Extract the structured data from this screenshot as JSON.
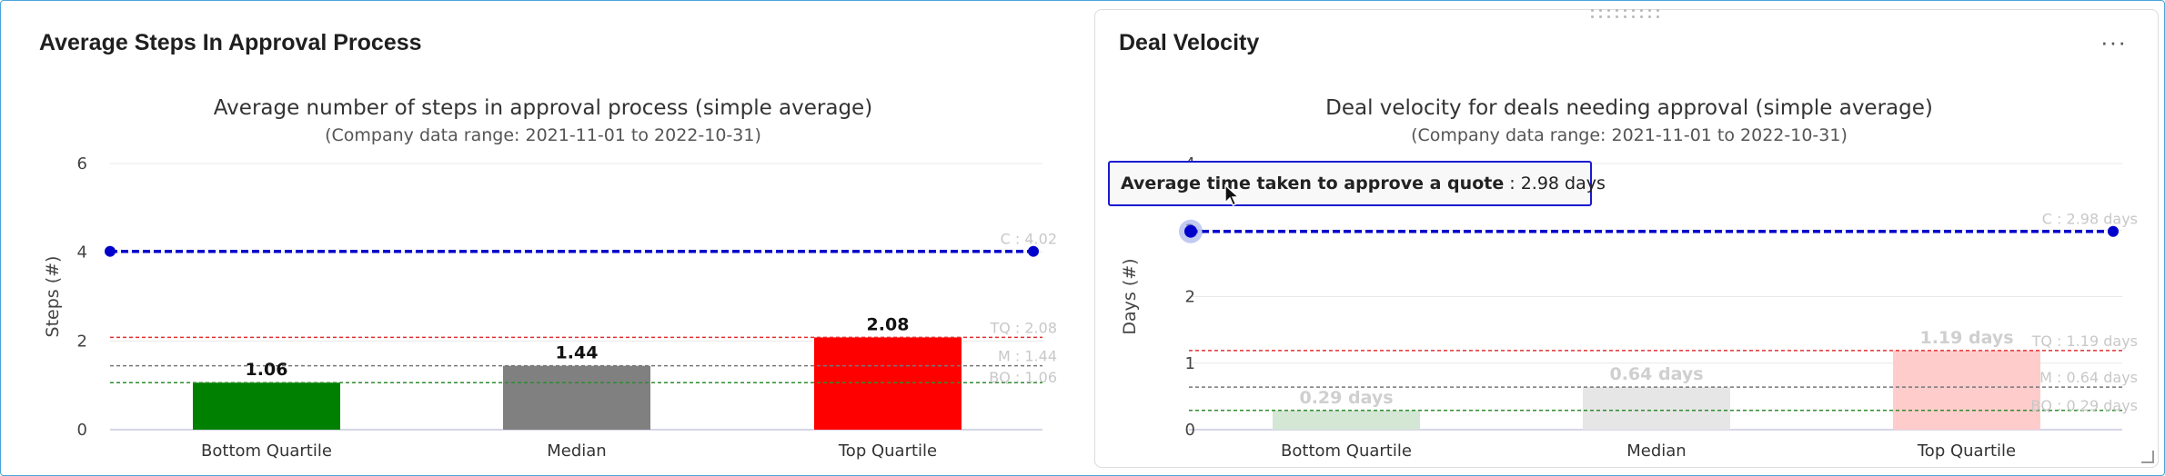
{
  "panels": {
    "left": {
      "title": "Average Steps In Approval Process"
    },
    "right": {
      "title": "Deal Velocity",
      "menu_icon": "more-horizontal-icon"
    }
  },
  "tooltip": {
    "label": "Average time taken to approve a quote",
    "value": " : 2.98 days"
  },
  "chart_data": [
    {
      "type": "bar",
      "title": "Average number of steps in approval process (simple average)",
      "subtitle": "(Company data range: 2021-11-01 to 2022-10-31)",
      "xlabel": "",
      "ylabel": "Steps (#)",
      "ylim": [
        0,
        6
      ],
      "yticks": [
        0,
        2,
        4,
        6
      ],
      "grid": true,
      "categories": [
        "Bottom Quartile",
        "Median",
        "Top Quartile"
      ],
      "values": [
        1.06,
        1.44,
        2.08
      ],
      "value_labels": [
        "1.06",
        "1.44",
        "2.08"
      ],
      "bar_colors": [
        "#008000",
        "#808080",
        "#ff0000"
      ],
      "bars_faded": false,
      "company_line": {
        "value": 4.02,
        "label": "C : 4.02",
        "color": "#0000cc"
      },
      "reference_lines": [
        {
          "value": 2.08,
          "label": "TQ : 2.08",
          "color": "#e03030"
        },
        {
          "value": 1.44,
          "label": "M : 1.44",
          "color": "#777777"
        },
        {
          "value": 1.06,
          "label": "BQ : 1.06",
          "color": "#2e8b2e"
        }
      ]
    },
    {
      "type": "bar",
      "title": "Deal velocity for deals needing approval (simple average)",
      "subtitle": "(Company data range: 2021-11-01 to 2022-10-31)",
      "xlabel": "",
      "ylabel": "Days (#)",
      "ylim": [
        0,
        4
      ],
      "yticks": [
        0,
        1,
        2,
        3,
        4
      ],
      "grid": true,
      "categories": [
        "Bottom Quartile",
        "Median",
        "Top Quartile"
      ],
      "values": [
        0.29,
        0.64,
        1.19
      ],
      "value_labels": [
        "0.29 days",
        "0.64 days",
        "1.19 days"
      ],
      "bar_colors": [
        "#d4e6d4",
        "#e6e6e6",
        "#ffcccc"
      ],
      "bars_faded": true,
      "company_line": {
        "value": 2.98,
        "label": "C : 2.98 days",
        "color": "#0000cc"
      },
      "reference_lines": [
        {
          "value": 1.19,
          "label": "TQ : 1.19 days",
          "color": "#e03030"
        },
        {
          "value": 0.64,
          "label": "M : 0.64 days",
          "color": "#777777"
        },
        {
          "value": 0.29,
          "label": "BQ : 0.29 days",
          "color": "#2e8b2e"
        }
      ]
    }
  ]
}
